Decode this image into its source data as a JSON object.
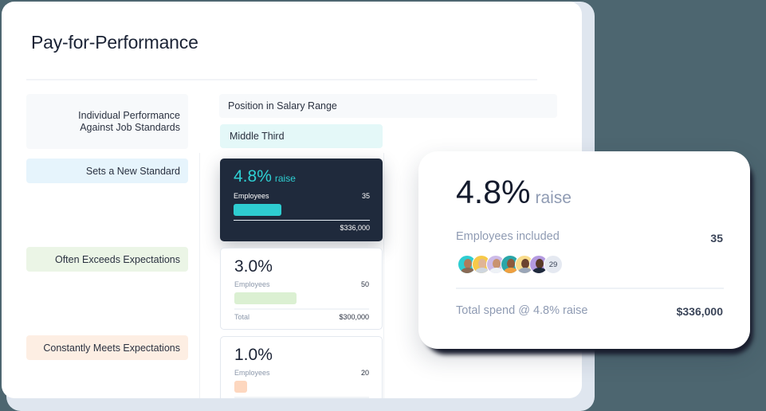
{
  "page": {
    "title": "Pay-for-Performance"
  },
  "table": {
    "row_header": {
      "line1": "Individual Performance",
      "line2": "Against Job Standards"
    },
    "column_header": "Position in Salary Range",
    "column_subheader": "Middle Third",
    "rows": [
      {
        "label": "Sets a New Standard",
        "label_color": "#e6f4fc",
        "percent": "4.8%",
        "percent_suffix": "raise",
        "employees_label": "Employees",
        "employees_count": "35",
        "total_label": "",
        "total_value": "$336,000",
        "bar_color": "#2ecdd1",
        "selected": true
      },
      {
        "label": "Often Exceeds Expectations",
        "label_color": "#ebf5e6",
        "percent": "3.0%",
        "employees_label": "Employees",
        "employees_count": "50",
        "total_label": "Total",
        "total_value": "$300,000",
        "bar_color": "#dbf0d2",
        "selected": false
      },
      {
        "label": "Constantly Meets Expectations",
        "label_color": "#fdeee3",
        "percent": "1.0%",
        "employees_label": "Employees",
        "employees_count": "20",
        "bar_color": "#fdd7bf",
        "selected": false
      }
    ]
  },
  "detail_card": {
    "percent": "4.8%",
    "percent_suffix": "raise",
    "employees_label": "Employees included",
    "employees_count": "35",
    "avatars": [
      {
        "name": "avatar-1",
        "ring": "#2ecdd1",
        "skin": "#b07a5a",
        "shirt": "#8a6a55"
      },
      {
        "name": "avatar-2",
        "ring": "#f7c948",
        "skin": "#e0b596",
        "shirt": "#cfd6de"
      },
      {
        "name": "avatar-3",
        "ring": "#cdbbe8",
        "skin": "#c99370",
        "shirt": "#eef2f6"
      },
      {
        "name": "avatar-4",
        "ring": "#2aa6a8",
        "skin": "#8c5a3c",
        "shirt": "#f0a040"
      },
      {
        "name": "avatar-5",
        "ring": "#f9dc8c",
        "skin": "#6b4330",
        "shirt": "#9aa6b8"
      },
      {
        "name": "avatar-6",
        "ring": "#b49ae0",
        "skin": "#5a3a28",
        "shirt": "#1f2a3c"
      }
    ],
    "more_count": "29",
    "total_label": "Total spend @ 4.8% raise",
    "total_value": "$336,000"
  }
}
